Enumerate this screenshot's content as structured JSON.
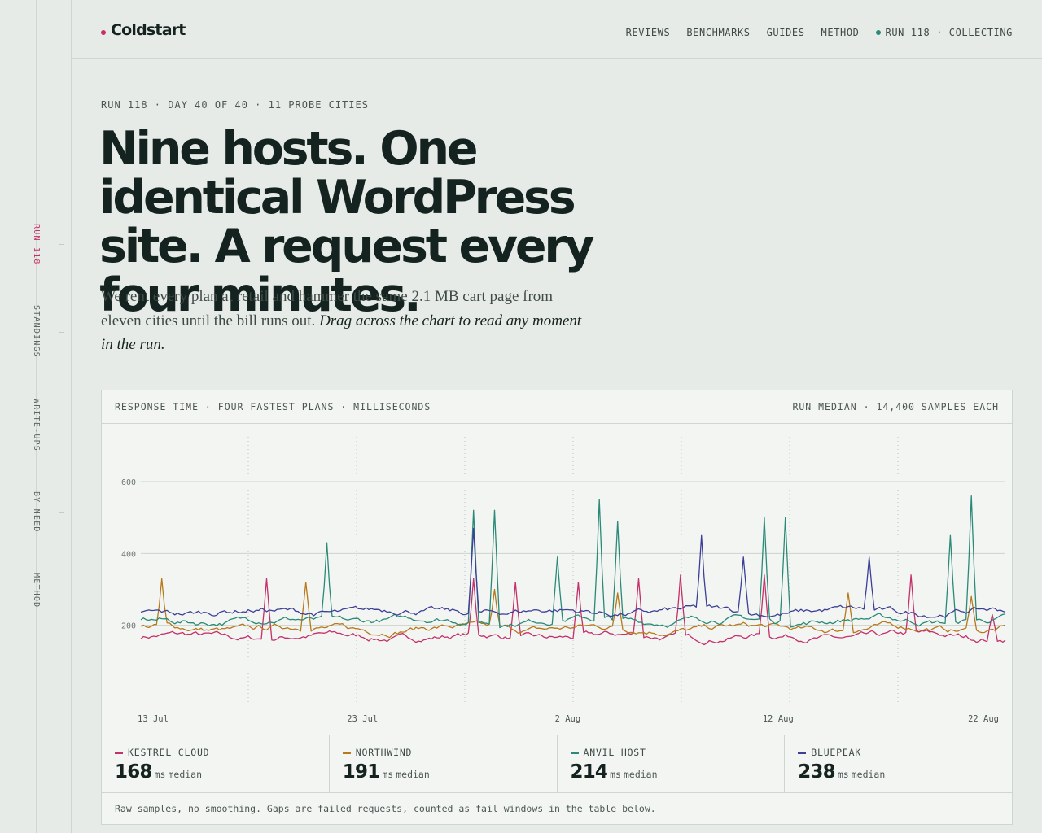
{
  "rail": {
    "items": [
      "RUN 118",
      "STANDINGS",
      "WRITE-UPS",
      "BY NEED",
      "METHOD"
    ]
  },
  "header": {
    "logo": "Coldstart",
    "nav": [
      "REVIEWS",
      "BENCHMARKS",
      "GUIDES",
      "METHOD"
    ],
    "status": "RUN 118 · COLLECTING"
  },
  "hero": {
    "eyebrow": "RUN 118 · DAY 40 OF 40 · 11 PROBE CITIES",
    "title": "Nine hosts. One identical WordPress site. A request every four minutes.",
    "lede_plain": "We rent every plan at retail and hammer the same 2.1 MB cart page from eleven cities until the bill runs out. ",
    "lede_em": "Drag across the chart to read any moment in the run."
  },
  "chart_card": {
    "title": "RESPONSE TIME · FOUR FASTEST PLANS · MILLISECONDS",
    "meta": "RUN MEDIAN · 14,400 SAMPLES EACH",
    "median_unit": "ms",
    "median_label": "median",
    "footnote": "Raw samples, no smoothing. Gaps are failed requests, counted as fail windows in the table below."
  },
  "colors": {
    "kestrel": "#c4306a",
    "northwind": "#b8781c",
    "anvil": "#2a8a77",
    "bluepeak": "#3d3f96",
    "accent": "#c4306a",
    "status": "#2a8a77"
  },
  "chart_data": {
    "type": "line",
    "title": "RESPONSE TIME · FOUR FASTEST PLANS · MILLISECONDS",
    "xlabel": "",
    "ylabel": "",
    "x_range": [
      "13 Jul",
      "23 Aug"
    ],
    "x_ticks": [
      "13 Jul",
      "23 Jul",
      "2 Aug",
      "12 Aug",
      "22 Aug"
    ],
    "ylim": [
      0,
      700
    ],
    "y_ticks": [
      200,
      400,
      600
    ],
    "grid": "horizontal at ticks; dotted vertical lines",
    "series": [
      {
        "name": "KESTREL CLOUD",
        "median": 168,
        "color": "#c4306a",
        "baseline": 168,
        "spikes": [
          {
            "x": "19 Jul",
            "y": 330
          },
          {
            "x": "29 Jul",
            "y": 330
          },
          {
            "x": "31 Jul",
            "y": 320
          },
          {
            "x": "3 Aug",
            "y": 320
          },
          {
            "x": "6 Aug",
            "y": 330
          },
          {
            "x": "8 Aug",
            "y": 340
          },
          {
            "x": "12 Aug",
            "y": 340
          },
          {
            "x": "19 Aug",
            "y": 340
          },
          {
            "x": "23 Aug",
            "y": 230
          }
        ]
      },
      {
        "name": "NORTHWIND",
        "median": 191,
        "color": "#b8781c",
        "baseline": 191,
        "spikes": [
          {
            "x": "14 Jul",
            "y": 330
          },
          {
            "x": "21 Jul",
            "y": 320
          },
          {
            "x": "30 Jul",
            "y": 300
          },
          {
            "x": "5 Aug",
            "y": 290
          },
          {
            "x": "16 Aug",
            "y": 290
          },
          {
            "x": "22 Aug",
            "y": 280
          }
        ]
      },
      {
        "name": "ANVIL HOST",
        "median": 214,
        "color": "#2a8a77",
        "baseline": 214,
        "spikes": [
          {
            "x": "22 Jul",
            "y": 430
          },
          {
            "x": "29 Jul",
            "y": 520
          },
          {
            "x": "30 Jul",
            "y": 520
          },
          {
            "x": "2 Aug",
            "y": 390
          },
          {
            "x": "4 Aug",
            "y": 550
          },
          {
            "x": "5 Aug",
            "y": 490
          },
          {
            "x": "12 Aug",
            "y": 500
          },
          {
            "x": "13 Aug",
            "y": 500
          },
          {
            "x": "21 Aug",
            "y": 450
          },
          {
            "x": "22 Aug",
            "y": 560
          }
        ]
      },
      {
        "name": "BLUEPEAK",
        "median": 238,
        "color": "#3d3f96",
        "baseline": 238,
        "spikes": [
          {
            "x": "29 Jul",
            "y": 470
          },
          {
            "x": "9 Aug",
            "y": 450
          },
          {
            "x": "11 Aug",
            "y": 390
          },
          {
            "x": "17 Aug",
            "y": 390
          }
        ]
      }
    ]
  }
}
